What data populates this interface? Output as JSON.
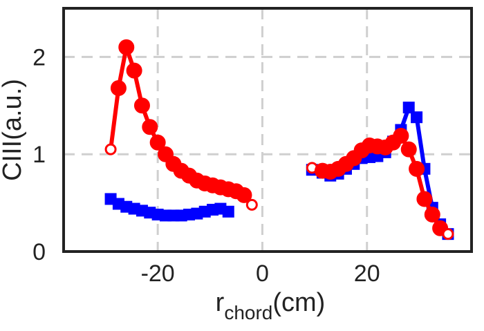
{
  "chart_data": {
    "type": "line",
    "title": "",
    "xlabel": {
      "main": "r",
      "sub": "chord",
      "unit": "(cm)"
    },
    "ylabel": "CIII(a.u.)",
    "xlim": [
      -38,
      40
    ],
    "ylim": [
      0,
      2.5
    ],
    "xticks": [
      -20,
      0,
      20
    ],
    "xtick_labels": [
      "-20",
      "0",
      "20"
    ],
    "yticks": [
      0,
      1,
      2
    ],
    "ytick_labels": [
      "0",
      "1",
      "2"
    ],
    "grid": true,
    "legend": "none",
    "series": [
      {
        "color": "#0000ff",
        "marker": "square",
        "segments": [
          [
            {
              "x": -29,
              "y": 0.54
            },
            {
              "x": -27.5,
              "y": 0.49
            },
            {
              "x": -26,
              "y": 0.46
            },
            {
              "x": -24.5,
              "y": 0.44
            },
            {
              "x": -23,
              "y": 0.42
            },
            {
              "x": -21.5,
              "y": 0.4
            },
            {
              "x": -20,
              "y": 0.38
            },
            {
              "x": -18.5,
              "y": 0.37
            },
            {
              "x": -17,
              "y": 0.37
            },
            {
              "x": -15.5,
              "y": 0.37
            },
            {
              "x": -14,
              "y": 0.38
            },
            {
              "x": -12.5,
              "y": 0.39
            },
            {
              "x": -11,
              "y": 0.41
            },
            {
              "x": -9.5,
              "y": 0.43
            },
            {
              "x": -8,
              "y": 0.44
            },
            {
              "x": -6.5,
              "y": 0.41
            }
          ],
          [
            {
              "x": 9.5,
              "y": 0.84
            },
            {
              "x": 11.5,
              "y": 0.81
            },
            {
              "x": 13,
              "y": 0.78
            },
            {
              "x": 14.5,
              "y": 0.8
            },
            {
              "x": 16,
              "y": 0.85
            },
            {
              "x": 17.5,
              "y": 0.9
            },
            {
              "x": 19,
              "y": 0.96
            },
            {
              "x": 20.5,
              "y": 0.97
            },
            {
              "x": 22,
              "y": 0.98
            },
            {
              "x": 23.5,
              "y": 1.02
            },
            {
              "x": 25,
              "y": 1.13
            },
            {
              "x": 26.5,
              "y": 1.25
            },
            {
              "x": 28,
              "y": 1.48
            },
            {
              "x": 29.5,
              "y": 1.38
            },
            {
              "x": 31,
              "y": 0.85
            },
            {
              "x": 32.5,
              "y": 0.45
            },
            {
              "x": 34,
              "y": 0.28
            },
            {
              "x": 35.5,
              "y": 0.18
            }
          ]
        ]
      },
      {
        "color": "#ff0000",
        "marker": "circle",
        "segments": [
          [
            {
              "x": -29,
              "y": 1.05,
              "hollow": true
            },
            {
              "x": -27.5,
              "y": 1.68
            },
            {
              "x": -26,
              "y": 2.1
            },
            {
              "x": -24.5,
              "y": 1.86
            },
            {
              "x": -23,
              "y": 1.5
            },
            {
              "x": -21.5,
              "y": 1.28
            },
            {
              "x": -20,
              "y": 1.12
            },
            {
              "x": -18.5,
              "y": 1.0
            },
            {
              "x": -17,
              "y": 0.9
            },
            {
              "x": -15.5,
              "y": 0.83
            },
            {
              "x": -14,
              "y": 0.78
            },
            {
              "x": -12.5,
              "y": 0.73
            },
            {
              "x": -11,
              "y": 0.7
            },
            {
              "x": -9.5,
              "y": 0.68
            },
            {
              "x": -8,
              "y": 0.66
            },
            {
              "x": -6.5,
              "y": 0.64
            },
            {
              "x": -5,
              "y": 0.62
            },
            {
              "x": -3.5,
              "y": 0.58
            },
            {
              "x": -2,
              "y": 0.48,
              "hollow": true
            }
          ],
          [
            {
              "x": 9.5,
              "y": 0.86,
              "hollow": true
            },
            {
              "x": 11.5,
              "y": 0.83
            },
            {
              "x": 13,
              "y": 0.82
            },
            {
              "x": 14.5,
              "y": 0.85
            },
            {
              "x": 16,
              "y": 0.9
            },
            {
              "x": 17.5,
              "y": 0.96
            },
            {
              "x": 19,
              "y": 1.04
            },
            {
              "x": 20.5,
              "y": 1.09
            },
            {
              "x": 22,
              "y": 1.08
            },
            {
              "x": 23.5,
              "y": 1.07
            },
            {
              "x": 25,
              "y": 1.12
            },
            {
              "x": 26.5,
              "y": 1.19
            },
            {
              "x": 28,
              "y": 1.05
            },
            {
              "x": 29.5,
              "y": 0.85
            },
            {
              "x": 31,
              "y": 0.54
            },
            {
              "x": 32.5,
              "y": 0.38
            },
            {
              "x": 34,
              "y": 0.24
            },
            {
              "x": 35.5,
              "y": 0.18,
              "hollow": true
            }
          ]
        ]
      }
    ]
  }
}
